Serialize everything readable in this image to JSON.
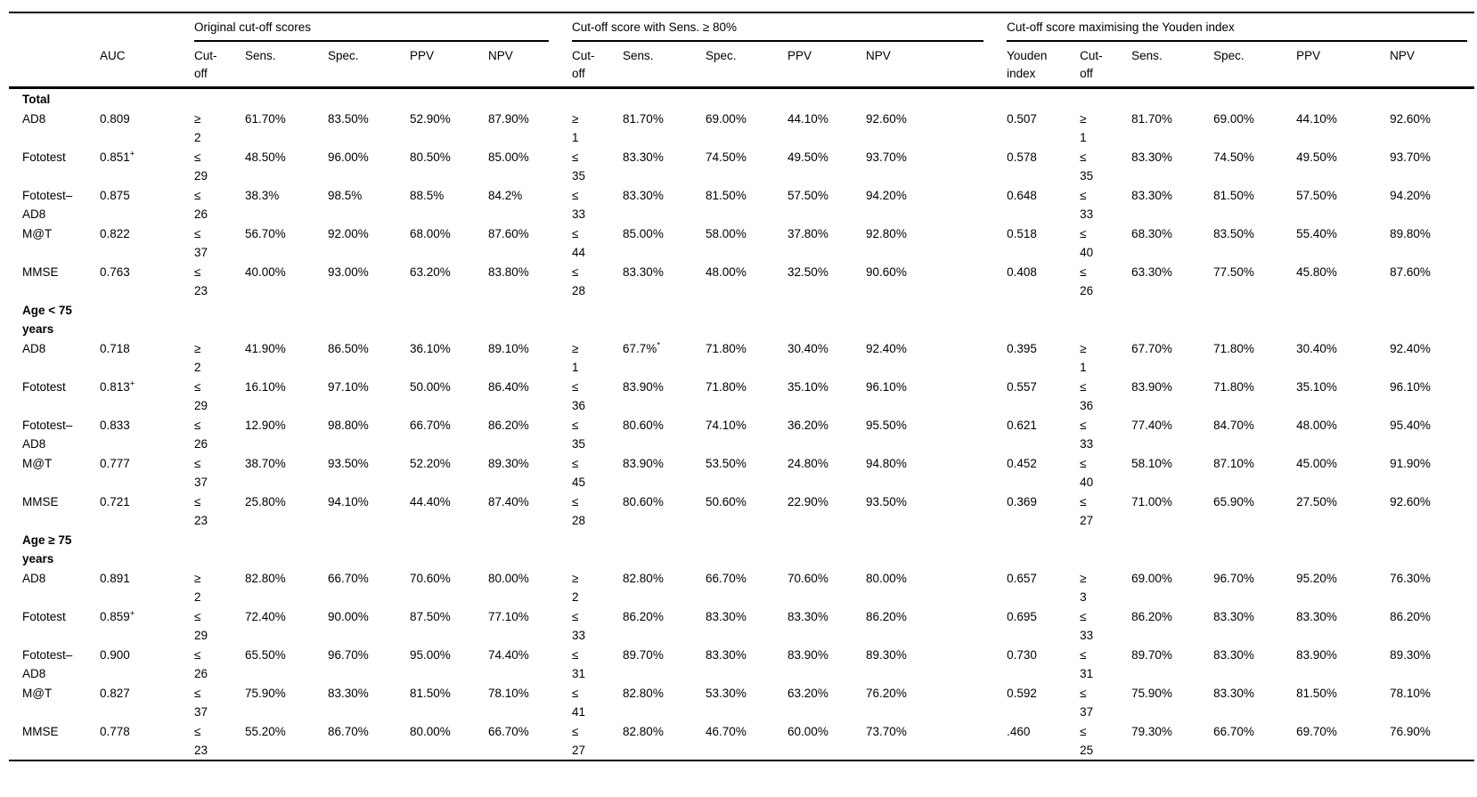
{
  "header": {
    "groups": [
      "Original cut-off scores",
      "Cut-off score with Sens. ≥ 80%",
      "Cut-off score maximising the Youden index"
    ],
    "columns": [
      "",
      "AUC",
      "Cut-\noff",
      "Sens.",
      "Spec.",
      "PPV",
      "NPV",
      "Cut-\noff",
      "Sens.",
      "Spec.",
      "PPV",
      "NPV",
      "Youden\nindex",
      "Cut-\noff",
      "Sens.",
      "Spec.",
      "PPV",
      "NPV"
    ]
  },
  "sections": [
    {
      "label": "Total",
      "rows": [
        {
          "name": "AD8",
          "cells": [
            "0.809",
            "≥\n2",
            "61.70%",
            "83.50%",
            "52.90%",
            "87.90%",
            "≥\n1",
            "81.70%",
            "69.00%",
            "44.10%",
            "92.60%",
            "0.507",
            "≥\n1",
            "81.70%",
            "69.00%",
            "44.10%",
            "92.60%"
          ]
        },
        {
          "name": "Fototest",
          "cells": [
            {
              "t": "0.851",
              "sup": "+"
            },
            "≤\n29",
            "48.50%",
            "96.00%",
            "80.50%",
            "85.00%",
            "≤\n35",
            "83.30%",
            "74.50%",
            "49.50%",
            "93.70%",
            "0.578",
            "≤\n35",
            "83.30%",
            "74.50%",
            "49.50%",
            "93.70%"
          ]
        },
        {
          "name": "Fototest–AD8",
          "cells": [
            "0.875",
            "≤\n26",
            "38.3%",
            "98.5%",
            "88.5%",
            "84.2%",
            "≤\n33",
            "83.30%",
            "81.50%",
            "57.50%",
            "94.20%",
            "0.648",
            "≤\n33",
            "83.30%",
            "81.50%",
            "57.50%",
            "94.20%"
          ]
        },
        {
          "name": "M@T",
          "cells": [
            "0.822",
            "≤\n37",
            "56.70%",
            "92.00%",
            "68.00%",
            "87.60%",
            "≤\n44",
            "85.00%",
            "58.00%",
            "37.80%",
            "92.80%",
            "0.518",
            "≤\n40",
            "68.30%",
            "83.50%",
            "55.40%",
            "89.80%"
          ]
        },
        {
          "name": "MMSE",
          "cells": [
            "0.763",
            "≤\n23",
            "40.00%",
            "93.00%",
            "63.20%",
            "83.80%",
            "≤\n28",
            "83.30%",
            "48.00%",
            "32.50%",
            "90.60%",
            "0.408",
            "≤\n26",
            "63.30%",
            "77.50%",
            "45.80%",
            "87.60%"
          ]
        }
      ]
    },
    {
      "label": "Age < 75 years",
      "rows": [
        {
          "name": "AD8",
          "cells": [
            "0.718",
            "≥\n2",
            "41.90%",
            "86.50%",
            "36.10%",
            "89.10%",
            "≥\n1",
            {
              "t": "67.7%",
              "sup": "*"
            },
            "71.80%",
            "30.40%",
            "92.40%",
            "0.395",
            "≥\n1",
            "67.70%",
            "71.80%",
            "30.40%",
            "92.40%"
          ]
        },
        {
          "name": "Fototest",
          "cells": [
            {
              "t": "0.813",
              "sup": "+"
            },
            "≤\n29",
            "16.10%",
            "97.10%",
            "50.00%",
            "86.40%",
            "≤\n36",
            "83.90%",
            "71.80%",
            "35.10%",
            "96.10%",
            "0.557",
            "≤\n36",
            "83.90%",
            "71.80%",
            "35.10%",
            "96.10%"
          ]
        },
        {
          "name": "Fototest–AD8",
          "cells": [
            "0.833",
            "≤\n26",
            "12.90%",
            "98.80%",
            "66.70%",
            "86.20%",
            "≤\n35",
            "80.60%",
            "74.10%",
            "36.20%",
            "95.50%",
            "0.621",
            "≤\n33",
            "77.40%",
            "84.70%",
            "48.00%",
            "95.40%"
          ]
        },
        {
          "name": "M@T",
          "cells": [
            "0.777",
            "≤\n37",
            "38.70%",
            "93.50%",
            "52.20%",
            "89.30%",
            "≤\n45",
            "83.90%",
            "53.50%",
            "24.80%",
            "94.80%",
            "0.452",
            "≤\n40",
            "58.10%",
            "87.10%",
            "45.00%",
            "91.90%"
          ]
        },
        {
          "name": "MMSE",
          "cells": [
            "0.721",
            "≤\n23",
            "25.80%",
            "94.10%",
            "44.40%",
            "87.40%",
            "≤\n28",
            "80.60%",
            "50.60%",
            "22.90%",
            "93.50%",
            "0.369",
            "≤\n27",
            "71.00%",
            "65.90%",
            "27.50%",
            "92.60%"
          ]
        }
      ]
    },
    {
      "label": "Age ≥ 75 years",
      "rows": [
        {
          "name": "AD8",
          "cells": [
            "0.891",
            "≥\n2",
            "82.80%",
            "66.70%",
            "70.60%",
            "80.00%",
            "≥\n2",
            "82.80%",
            "66.70%",
            "70.60%",
            "80.00%",
            "0.657",
            "≥\n3",
            "69.00%",
            "96.70%",
            "95.20%",
            "76.30%"
          ]
        },
        {
          "name": "Fototest",
          "cells": [
            {
              "t": "0.859",
              "sup": "+"
            },
            "≤\n29",
            "72.40%",
            "90.00%",
            "87.50%",
            "77.10%",
            "≤\n33",
            "86.20%",
            "83.30%",
            "83.30%",
            "86.20%",
            "0.695",
            "≤\n33",
            "86.20%",
            "83.30%",
            "83.30%",
            "86.20%"
          ]
        },
        {
          "name": "Fototest–AD8",
          "cells": [
            "0.900",
            "≤\n26",
            "65.50%",
            "96.70%",
            "95.00%",
            "74.40%",
            "≤\n31",
            "89.70%",
            "83.30%",
            "83.90%",
            "89.30%",
            "0.730",
            "≤\n31",
            "89.70%",
            "83.30%",
            "83.90%",
            "89.30%"
          ]
        },
        {
          "name": "M@T",
          "cells": [
            "0.827",
            "≤\n37",
            "75.90%",
            "83.30%",
            "81.50%",
            "78.10%",
            "≤\n41",
            "82.80%",
            "53.30%",
            "63.20%",
            "76.20%",
            "0.592",
            "≤\n37",
            "75.90%",
            "83.30%",
            "81.50%",
            "78.10%"
          ]
        },
        {
          "name": "MMSE",
          "cells": [
            "0.778",
            "≤\n23",
            "55.20%",
            "86.70%",
            "80.00%",
            "66.70%",
            "≤\n27",
            "82.80%",
            "46.70%",
            "60.00%",
            "73.70%",
            ".460",
            "≤\n25",
            "79.30%",
            "66.70%",
            "69.70%",
            "76.90%"
          ]
        }
      ]
    }
  ]
}
